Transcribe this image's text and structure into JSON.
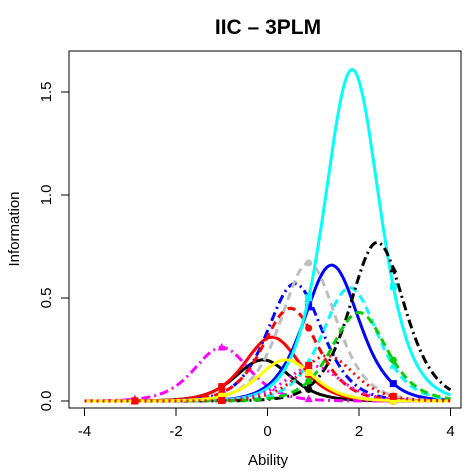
{
  "chart_data": {
    "type": "line",
    "title": "IIC – 3PLM",
    "xlabel": "Ability",
    "ylabel": "Information",
    "xlim": [
      -4,
      4
    ],
    "ylim": [
      0,
      1.6
    ],
    "xticks": [
      -4,
      -2,
      0,
      2,
      4
    ],
    "yticks": [
      0.0,
      0.5,
      1.0,
      1.5
    ],
    "ytick_labels": [
      "0.0",
      "0.5",
      "1.0",
      "1.5"
    ],
    "grid": false,
    "legend": "none",
    "series": [
      {
        "color": "#000000",
        "dash": "solid",
        "marker": "circle",
        "peak_x": -0.1,
        "peak_y": 0.2
      },
      {
        "color": "#ff0000",
        "dash": "solid",
        "marker": "square",
        "peak_x": 0.1,
        "peak_y": 0.31
      },
      {
        "color": "#ff00ff",
        "dash": "dashdot",
        "marker": "triangle",
        "peak_x": -1.0,
        "peak_y": 0.26
      },
      {
        "color": "#0000ff",
        "dash": "solid",
        "marker": "square",
        "peak_x": 1.4,
        "peak_y": 0.66
      },
      {
        "color": "#0000ff",
        "dash": "dashdot",
        "marker": "triangle",
        "peak_x": 0.6,
        "peak_y": 0.57
      },
      {
        "color": "#ff0000",
        "dash": "dashed",
        "marker": "circle",
        "peak_x": 0.5,
        "peak_y": 0.45
      },
      {
        "color": "#bebebe",
        "dash": "dashed",
        "marker": "circle",
        "peak_x": 0.9,
        "peak_y": 0.67
      },
      {
        "color": "#00ffff",
        "dash": "solid",
        "marker": "square",
        "peak_x": 1.85,
        "peak_y": 1.61
      },
      {
        "color": "#00ffff",
        "dash": "dashed",
        "marker": "triangle",
        "peak_x": 1.8,
        "peak_y": 0.55
      },
      {
        "color": "#000000",
        "dash": "dashdot",
        "marker": "triangle",
        "peak_x": 2.4,
        "peak_y": 0.77
      },
      {
        "color": "#00cd00",
        "dash": "dashed",
        "marker": "circle",
        "peak_x": 2.0,
        "peak_y": 0.43
      },
      {
        "color": "#ff00ff",
        "dash": "dotted",
        "marker": "triangle",
        "peak_x": 1.0,
        "peak_y": 0.17
      },
      {
        "color": "#ffff00",
        "dash": "solid",
        "marker": "square",
        "peak_x": 0.4,
        "peak_y": 0.2
      },
      {
        "color": "#ff0000",
        "dash": "dotted",
        "marker": "square",
        "peak_x": 1.3,
        "peak_y": 0.22
      }
    ]
  }
}
